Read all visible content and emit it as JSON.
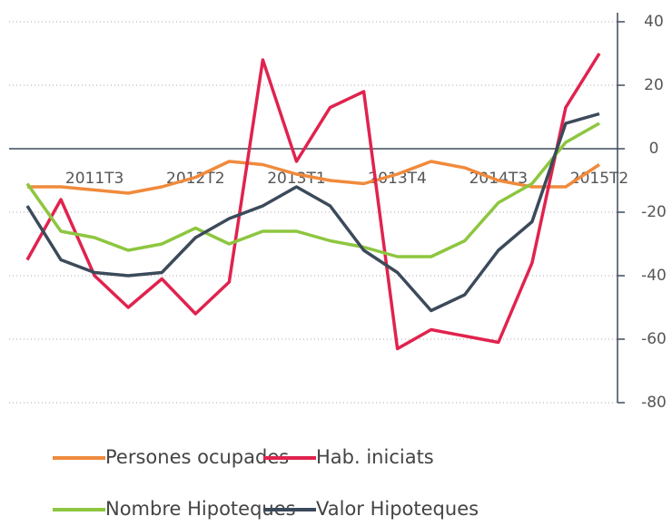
{
  "chart_data": {
    "type": "line",
    "categories": [
      null,
      null,
      "2011T3",
      null,
      null,
      "2012T2",
      null,
      null,
      "2013T1",
      null,
      null,
      "2013T4",
      null,
      null,
      "2014T3",
      null,
      null,
      "2015T2"
    ],
    "series": [
      {
        "name": "Persones ocupades",
        "color": "#f08a3c",
        "values": [
          -12,
          -12,
          -13,
          -14,
          -12,
          -9,
          -4,
          -5,
          -8,
          -10,
          -11,
          -8,
          -4,
          -6,
          -10,
          -12,
          -12,
          -5
        ]
      },
      {
        "name": "Hab. iniciats",
        "color": "#e0234e",
        "values": [
          -35,
          -16,
          -40,
          -50,
          -41,
          -52,
          -42,
          28,
          -4,
          13,
          18,
          -63,
          -57,
          -59,
          -61,
          -36,
          13,
          30
        ]
      },
      {
        "name": "Nombre Hipoteques",
        "color": "#8dc63f",
        "values": [
          -11,
          -26,
          -28,
          -32,
          -30,
          -25,
          -30,
          -26,
          -26,
          -29,
          -31,
          -34,
          -34,
          -29,
          -17,
          -11,
          2,
          8
        ]
      },
      {
        "name": "Valor Hipoteques",
        "color": "#3c4a5a",
        "values": [
          -18,
          -35,
          -39,
          -40,
          -39,
          -28,
          -22,
          -18,
          -12,
          -18,
          -32,
          -39,
          -51,
          -46,
          -32,
          -23,
          8,
          11
        ]
      }
    ],
    "ylim": [
      -80,
      40
    ],
    "yticks": [
      -80,
      -60,
      -40,
      -20,
      0,
      20,
      40
    ],
    "grid": true
  }
}
